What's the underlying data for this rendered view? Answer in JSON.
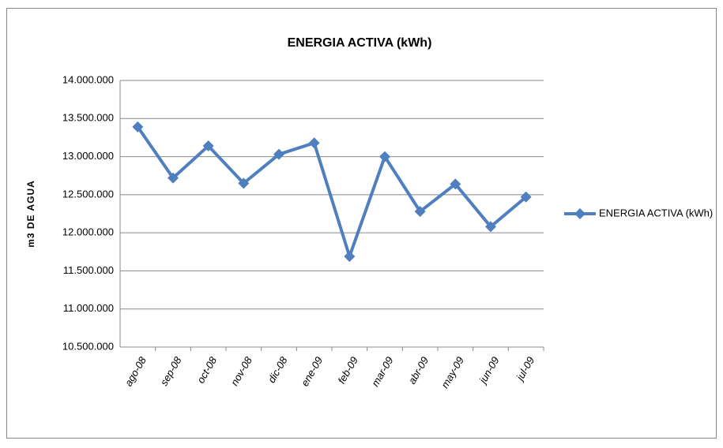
{
  "chart_data": {
    "type": "line",
    "title": "ENERGIA ACTIVA (kWh)",
    "y_label": "m3 DE AGUA",
    "categories": [
      "ago-08",
      "sep-08",
      "oct-08",
      "nov-08",
      "dic-08",
      "ene-09",
      "feb-09",
      "mar-09",
      "abr-09",
      "may-09",
      "jun-09",
      "jul-09"
    ],
    "series": [
      {
        "name": "ENERGIA ACTIVA (kWh)",
        "color": "#4f7fbf",
        "values": [
          13390000,
          12720000,
          13140000,
          12650000,
          13030000,
          13180000,
          11690000,
          13000000,
          12280000,
          12640000,
          12080000,
          12470000
        ]
      }
    ],
    "ylim": [
      10500000,
      14000000
    ],
    "yticks": [
      {
        "value": 10500000,
        "label": "10.500.000"
      },
      {
        "value": 11000000,
        "label": "11.000.000"
      },
      {
        "value": 11500000,
        "label": "11.500.000"
      },
      {
        "value": 12000000,
        "label": "12.000.000"
      },
      {
        "value": 12500000,
        "label": "12.500.000"
      },
      {
        "value": 13000000,
        "label": "13.000.000"
      },
      {
        "value": 13500000,
        "label": "13.500.000"
      },
      {
        "value": 14000000,
        "label": "14.000.000"
      }
    ],
    "grid": true,
    "legend": "right"
  }
}
